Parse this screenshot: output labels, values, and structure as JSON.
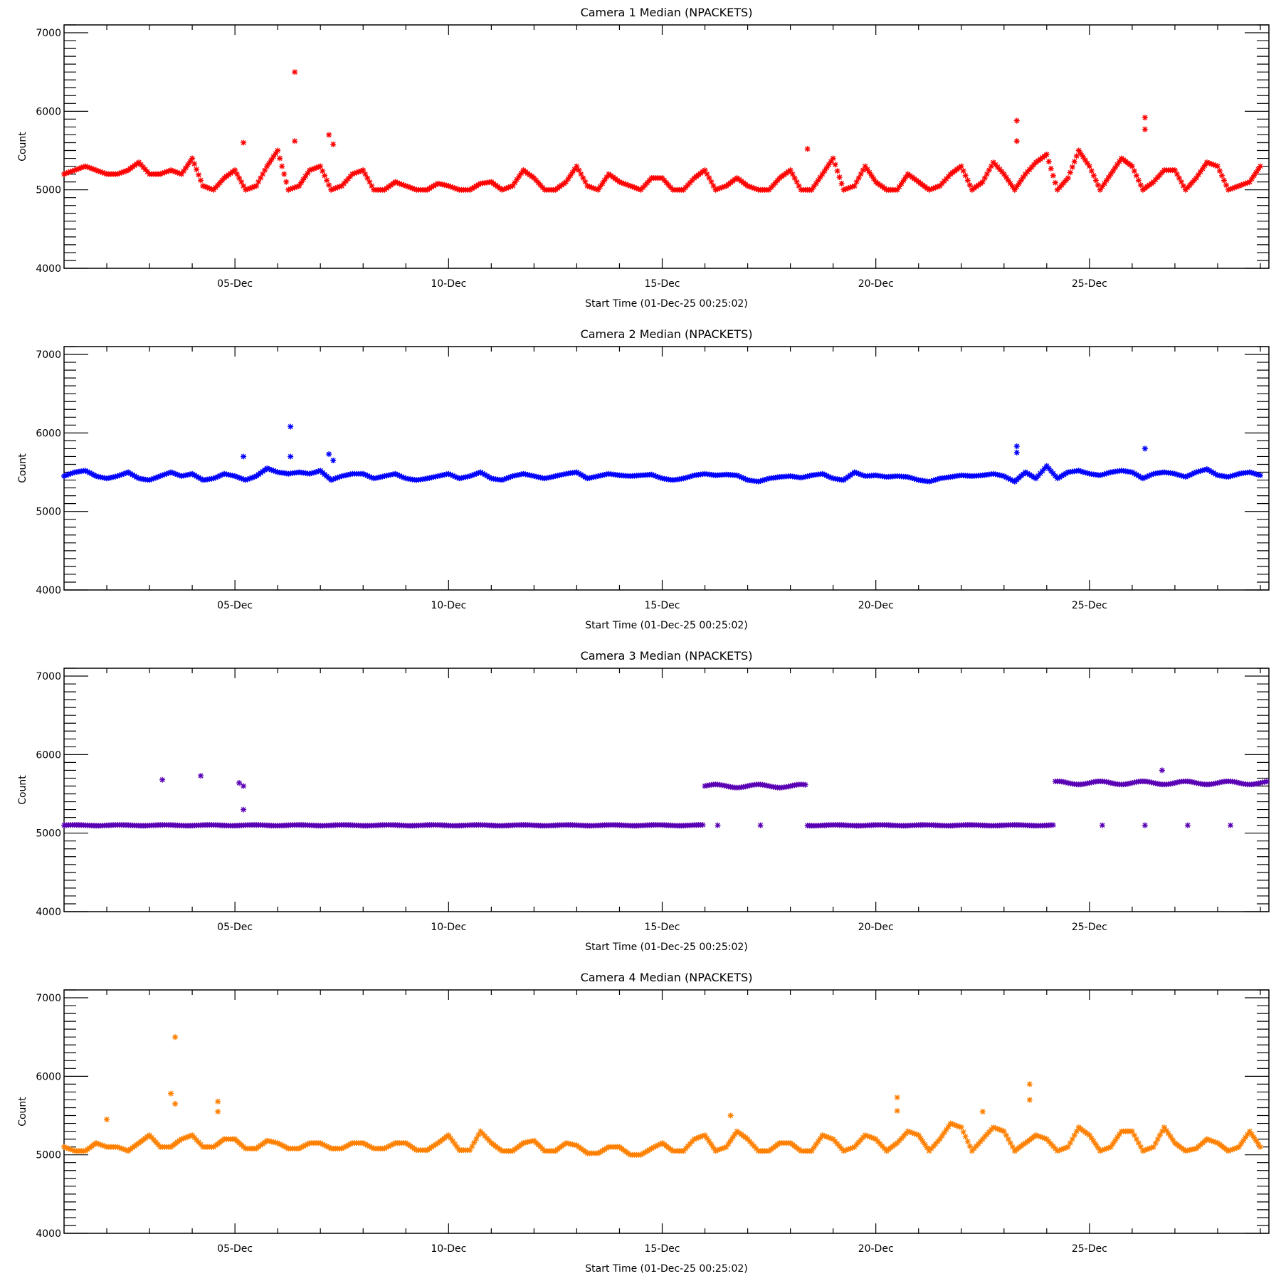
{
  "chart_data": [
    {
      "type": "scatter",
      "title": "Camera  1  Median  (NPACKETS)",
      "xlabel": "Start Time (01-Dec-25 00:25:02)",
      "ylabel": "Count",
      "color": "#ff0000",
      "x_units": "days since 01-Dec-25 00:00",
      "xlim": [
        0,
        28.2
      ],
      "ylim": [
        4000,
        7100
      ],
      "yticks": [
        4000,
        5000,
        6000,
        7000
      ],
      "xticks": [
        {
          "at": 4,
          "label": "05-Dec"
        },
        {
          "at": 9,
          "label": "10-Dec"
        },
        {
          "at": 14,
          "label": "15-Dec"
        },
        {
          "at": 19,
          "label": "20-Dec"
        },
        {
          "at": 24,
          "label": "25-Dec"
        }
      ],
      "sample_step_days": 0.25,
      "values": [
        5200,
        5250,
        5300,
        5250,
        5200,
        5200,
        5250,
        5350,
        5200,
        5200,
        5250,
        5200,
        5400,
        5050,
        5000,
        5150,
        5250,
        5000,
        5050,
        5300,
        5500,
        5000,
        5050,
        5250,
        5300,
        5000,
        5050,
        5200,
        5250,
        5000,
        5000,
        5100,
        5050,
        5000,
        5000,
        5080,
        5050,
        5000,
        5000,
        5080,
        5100,
        5000,
        5050,
        5250,
        5150,
        5000,
        5000,
        5100,
        5300,
        5050,
        5000,
        5200,
        5100,
        5050,
        5000,
        5150,
        5150,
        5000,
        5000,
        5150,
        5250,
        5000,
        5050,
        5150,
        5050,
        5000,
        5000,
        5150,
        5250,
        5000,
        5000,
        5200,
        5400,
        5000,
        5050,
        5300,
        5100,
        5000,
        5000,
        5200,
        5100,
        5000,
        5050,
        5200,
        5300,
        5000,
        5100,
        5350,
        5200,
        5000,
        5200,
        5350,
        5450,
        5000,
        5150,
        5500,
        5300,
        5000,
        5200,
        5400,
        5300,
        5000,
        5100,
        5250,
        5250,
        5000,
        5150,
        5350,
        5300,
        5000,
        5050,
        5100,
        5300
      ],
      "outliers": [
        [
          5.4,
          6500
        ],
        [
          5.4,
          5620
        ],
        [
          4.2,
          5600
        ],
        [
          6.2,
          5700
        ],
        [
          6.3,
          5580
        ],
        [
          22.3,
          5880
        ],
        [
          22.3,
          5620
        ],
        [
          25.3,
          5920
        ],
        [
          25.3,
          5770
        ],
        [
          17.4,
          5520
        ]
      ]
    },
    {
      "type": "scatter",
      "title": "Camera  2  Median  (NPACKETS)",
      "xlabel": "Start Time (01-Dec-25 00:25:02)",
      "ylabel": "Count",
      "color": "#0000ff",
      "x_units": "days since 01-Dec-25 00:00",
      "xlim": [
        0,
        28.2
      ],
      "ylim": [
        4000,
        7100
      ],
      "yticks": [
        4000,
        5000,
        6000,
        7000
      ],
      "xticks": [
        {
          "at": 4,
          "label": "05-Dec"
        },
        {
          "at": 9,
          "label": "10-Dec"
        },
        {
          "at": 14,
          "label": "15-Dec"
        },
        {
          "at": 19,
          "label": "20-Dec"
        },
        {
          "at": 24,
          "label": "25-Dec"
        }
      ],
      "sample_step_days": 0.25,
      "values": [
        5450,
        5500,
        5520,
        5450,
        5420,
        5450,
        5500,
        5420,
        5400,
        5450,
        5500,
        5450,
        5480,
        5400,
        5420,
        5480,
        5450,
        5400,
        5450,
        5550,
        5500,
        5480,
        5500,
        5480,
        5520,
        5400,
        5450,
        5480,
        5480,
        5420,
        5450,
        5480,
        5420,
        5400,
        5420,
        5450,
        5480,
        5420,
        5450,
        5500,
        5420,
        5400,
        5450,
        5480,
        5450,
        5420,
        5450,
        5480,
        5500,
        5420,
        5450,
        5480,
        5460,
        5450,
        5460,
        5470,
        5420,
        5400,
        5420,
        5460,
        5480,
        5460,
        5470,
        5460,
        5400,
        5380,
        5420,
        5440,
        5450,
        5430,
        5460,
        5480,
        5420,
        5400,
        5500,
        5450,
        5460,
        5440,
        5450,
        5440,
        5400,
        5380,
        5420,
        5440,
        5460,
        5450,
        5460,
        5480,
        5450,
        5380,
        5500,
        5420,
        5580,
        5420,
        5500,
        5520,
        5480,
        5460,
        5500,
        5520,
        5500,
        5420,
        5480,
        5500,
        5480,
        5440,
        5500,
        5540,
        5460,
        5440,
        5480,
        5500,
        5460
      ],
      "outliers": [
        [
          5.3,
          6080
        ],
        [
          5.3,
          5700
        ],
        [
          4.2,
          5700
        ],
        [
          6.2,
          5730
        ],
        [
          6.3,
          5650
        ],
        [
          22.3,
          5830
        ],
        [
          22.3,
          5750
        ],
        [
          25.3,
          5800
        ]
      ]
    },
    {
      "type": "scatter",
      "title": "Camera  3  Median  (NPACKETS)",
      "xlabel": "Start Time (01-Dec-25 00:25:02)",
      "ylabel": "Count",
      "color": "#5a00b4",
      "x_units": "days since 01-Dec-25 00:00",
      "xlim": [
        0,
        28.2
      ],
      "ylim": [
        4000,
        7100
      ],
      "yticks": [
        4000,
        5000,
        6000,
        7000
      ],
      "xticks": [
        {
          "at": 4,
          "label": "05-Dec"
        },
        {
          "at": 9,
          "label": "10-Dec"
        },
        {
          "at": 14,
          "label": "15-Dec"
        },
        {
          "at": 19,
          "label": "20-Dec"
        },
        {
          "at": 24,
          "label": "25-Dec"
        }
      ],
      "segments": [
        [
          0,
          15,
          5100
        ],
        [
          15,
          17.4,
          5600
        ],
        [
          17.4,
          23.2,
          5100
        ],
        [
          23.2,
          28.2,
          5640
        ]
      ],
      "outliers": [
        [
          2.3,
          5680
        ],
        [
          3.2,
          5730
        ],
        [
          4.1,
          5640
        ],
        [
          4.2,
          5600
        ],
        [
          4.2,
          5300
        ],
        [
          15.3,
          5100
        ],
        [
          16.3,
          5100
        ],
        [
          24.3,
          5100
        ],
        [
          25.3,
          5100
        ],
        [
          26.3,
          5100
        ],
        [
          27.3,
          5100
        ],
        [
          28.3,
          5100
        ],
        [
          25.7,
          5800
        ]
      ]
    },
    {
      "type": "scatter",
      "title": "Camera  4  Median  (NPACKETS)",
      "xlabel": "Start Time (01-Dec-25 00:25:02)",
      "ylabel": "Count",
      "color": "#ff8000",
      "x_units": "days since 01-Dec-25 00:00",
      "xlim": [
        0,
        28.2
      ],
      "ylim": [
        4000,
        7100
      ],
      "yticks": [
        4000,
        5000,
        6000,
        7000
      ],
      "xticks": [
        {
          "at": 4,
          "label": "05-Dec"
        },
        {
          "at": 9,
          "label": "10-Dec"
        },
        {
          "at": 14,
          "label": "15-Dec"
        },
        {
          "at": 19,
          "label": "20-Dec"
        },
        {
          "at": 24,
          "label": "25-Dec"
        }
      ],
      "sample_step_days": 0.25,
      "values": [
        5100,
        5050,
        5050,
        5150,
        5100,
        5100,
        5050,
        5150,
        5250,
        5100,
        5100,
        5200,
        5250,
        5100,
        5100,
        5200,
        5200,
        5080,
        5080,
        5180,
        5150,
        5080,
        5080,
        5150,
        5150,
        5080,
        5080,
        5150,
        5150,
        5080,
        5080,
        5150,
        5150,
        5060,
        5060,
        5150,
        5250,
        5060,
        5060,
        5300,
        5150,
        5050,
        5050,
        5150,
        5180,
        5050,
        5050,
        5150,
        5120,
        5020,
        5020,
        5100,
        5100,
        5000,
        5000,
        5080,
        5150,
        5050,
        5050,
        5200,
        5250,
        5050,
        5100,
        5300,
        5200,
        5050,
        5050,
        5150,
        5150,
        5050,
        5050,
        5250,
        5200,
        5050,
        5100,
        5250,
        5200,
        5050,
        5150,
        5300,
        5250,
        5050,
        5200,
        5400,
        5350,
        5050,
        5200,
        5350,
        5300,
        5050,
        5150,
        5250,
        5200,
        5050,
        5100,
        5350,
        5250,
        5050,
        5100,
        5300,
        5300,
        5050,
        5100,
        5350,
        5150,
        5050,
        5080,
        5200,
        5150,
        5050,
        5100,
        5300,
        5100
      ],
      "outliers": [
        [
          2.6,
          6500
        ],
        [
          2.5,
          5780
        ],
        [
          2.6,
          5650
        ],
        [
          3.6,
          5680
        ],
        [
          3.6,
          5550
        ],
        [
          1.0,
          5450
        ],
        [
          19.5,
          5730
        ],
        [
          19.5,
          5560
        ],
        [
          22.6,
          5900
        ],
        [
          22.6,
          5700
        ],
        [
          15.6,
          5500
        ],
        [
          21.5,
          5550
        ]
      ]
    }
  ]
}
